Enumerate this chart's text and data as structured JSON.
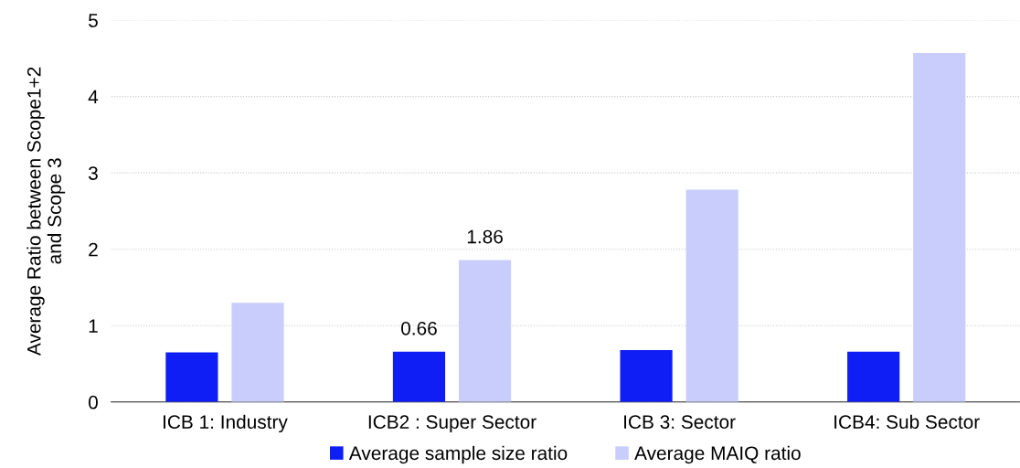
{
  "chart_data": {
    "type": "bar",
    "ylabel": "Average Ratio between Scope1+2\nand Scope 3",
    "categories": [
      "ICB 1: Industry",
      "ICB2 : Super Sector",
      "ICB 3: Sector",
      "ICB4: Sub Sector"
    ],
    "series": [
      {
        "name": "Average sample size ratio",
        "color": "#0f1ef5",
        "values": [
          0.65,
          0.66,
          0.68,
          0.66
        ],
        "value_labels": [
          null,
          "0.66",
          null,
          null
        ]
      },
      {
        "name": "Average MAIQ ratio",
        "color": "#c9cdfb",
        "values": [
          1.3,
          1.86,
          2.78,
          4.57
        ],
        "value_labels": [
          null,
          "1.86",
          null,
          null
        ]
      }
    ],
    "ylim": [
      0,
      5
    ],
    "yticks": [
      0,
      1,
      2,
      3,
      4,
      5
    ],
    "grid": "y",
    "legend": "bottom"
  }
}
